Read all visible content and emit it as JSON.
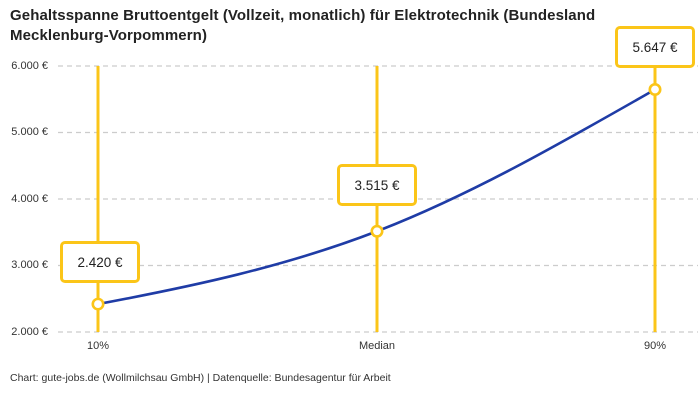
{
  "title": "Gehaltsspanne Bruttoentgelt (Vollzeit, monatlich) für Elektrotechnik (Bundesland Mecklenburg-Vorpommern)",
  "footer": "Chart: gute-jobs.de (Wollmilchsau GmbH) | Datenquelle: Bundesagentur für Arbeit",
  "colors": {
    "accent_yellow": "#FBC518",
    "line_blue": "#1F3CA6",
    "grid_gray": "#CCCCCC",
    "title_text": "#222222",
    "axis_text": "#333333",
    "marker_fill": "#FFFFFF",
    "background": "#FFFFFF"
  },
  "chart_data": {
    "type": "line",
    "title": "Gehaltsspanne Bruttoentgelt (Vollzeit, monatlich) für Elektrotechnik (Bundesland Mecklenburg-Vorpommern)",
    "categories": [
      "10%",
      "Median",
      "90%"
    ],
    "values": [
      2420,
      3515,
      5647
    ],
    "value_labels": [
      "2.420 €",
      "3.515 €",
      "5.647 €"
    ],
    "series": [
      {
        "name": "Bruttoentgelt",
        "values": [
          2420,
          3515,
          5647
        ]
      }
    ],
    "y_ticks": [
      "2.000 €",
      "3.000 €",
      "4.000 €",
      "5.000 €",
      "6.000 €"
    ],
    "y_tick_values": [
      2000,
      3000,
      4000,
      5000,
      6000
    ],
    "ylim": [
      2000,
      6000
    ],
    "xlabel": "",
    "ylabel": "",
    "grid": "horizontal-dashed",
    "legend_position": "none",
    "marker": "open-circle",
    "annotations": "value shown in yellow-bordered white box above each data point; yellow vertical reference line at each category"
  }
}
